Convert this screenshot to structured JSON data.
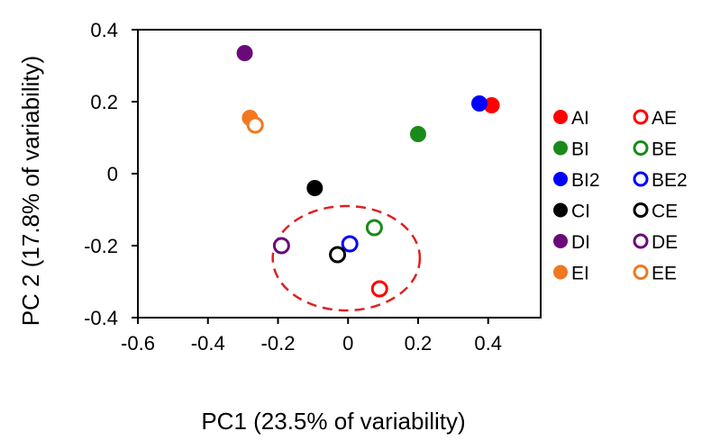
{
  "chart_data": {
    "type": "scatter",
    "xlabel": "PC1 (23.5% of variability)",
    "ylabel": "PC 2 (17.8% of variability)",
    "xlim": [
      -0.6,
      0.55
    ],
    "ylim": [
      -0.4,
      0.4
    ],
    "x_ticks": [
      "-0.6",
      "-0.4",
      "-0.2",
      "0",
      "0.2",
      "0.4"
    ],
    "x_tick_values": [
      -0.6,
      -0.4,
      -0.2,
      0,
      0.2,
      0.4
    ],
    "y_ticks": [
      "0.4",
      "0.2",
      "0",
      "-0.2",
      "-0.4"
    ],
    "y_tick_values": [
      0.4,
      0.2,
      0,
      -0.2,
      -0.4
    ],
    "grid": false,
    "legend_position": "right",
    "series": [
      {
        "name": "AI",
        "color": "#ff0000",
        "filled": true,
        "x": 0.41,
        "y": 0.19
      },
      {
        "name": "AE",
        "color": "#ff0000",
        "filled": false,
        "x": 0.09,
        "y": -0.32
      },
      {
        "name": "BI",
        "color": "#1a8a1a",
        "filled": true,
        "x": 0.2,
        "y": 0.11
      },
      {
        "name": "BE",
        "color": "#1a8a1a",
        "filled": false,
        "x": 0.075,
        "y": -0.15
      },
      {
        "name": "BI2",
        "color": "#0000ff",
        "filled": true,
        "x": 0.375,
        "y": 0.195
      },
      {
        "name": "BE2",
        "color": "#0000ff",
        "filled": false,
        "x": 0.005,
        "y": -0.195
      },
      {
        "name": "CI",
        "color": "#000000",
        "filled": true,
        "x": -0.095,
        "y": -0.04
      },
      {
        "name": "CE",
        "color": "#000000",
        "filled": false,
        "x": -0.03,
        "y": -0.225
      },
      {
        "name": "DI",
        "color": "#6a0a7a",
        "filled": true,
        "x": -0.295,
        "y": 0.335
      },
      {
        "name": "DE",
        "color": "#6a0a7a",
        "filled": false,
        "x": -0.19,
        "y": -0.2
      },
      {
        "name": "EI",
        "color": "#f07820",
        "filled": true,
        "x": -0.28,
        "y": 0.155
      },
      {
        "name": "EE",
        "color": "#f07820",
        "filled": false,
        "x": -0.265,
        "y": 0.135
      }
    ],
    "annotations": [
      {
        "type": "dashed-ellipse",
        "color": "#e02020",
        "center": [
          -0.005,
          -0.235
        ],
        "radii": [
          0.21,
          0.145
        ]
      }
    ]
  }
}
